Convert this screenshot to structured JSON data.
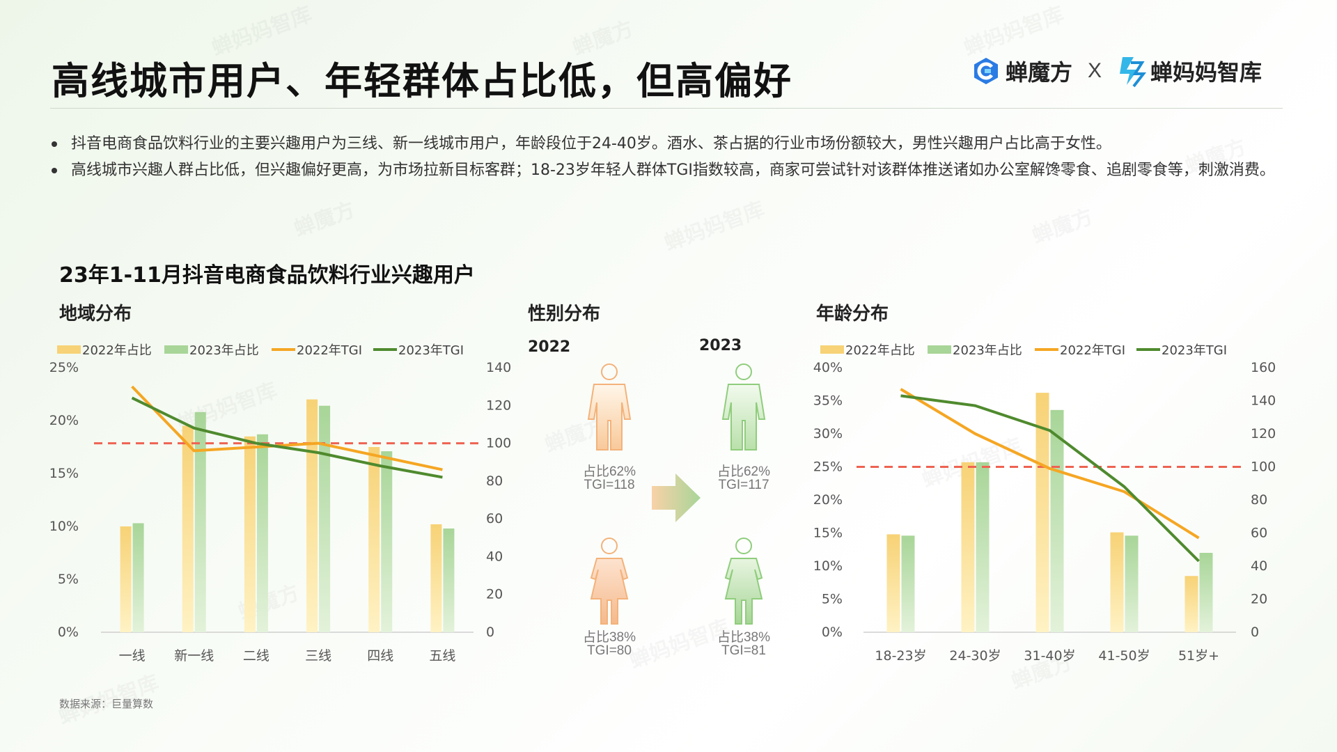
{
  "header": {
    "title": "高线城市用户、年轻群体占比低，但高偏好",
    "logo1": "蝉魔方",
    "separator": "X",
    "logo2": "蝉妈妈智库"
  },
  "bullets": [
    "抖音电商食品饮料行业的主要兴趣用户为三线、新一线城市用户，年龄段位于24-40岁。酒水、茶占据的行业市场份额较大，男性兴趣用户占比高于女性。",
    "高线城市兴趣人群占比低，但兴趣偏好更高，为市场拉新目标客群；18-23岁年轻人群体TGI指数较高，商家可尝试针对该群体推送诸如办公室解馋零食、追剧零食等，刺激消费。"
  ],
  "section_title": "23年1-11月抖音电商食品饮料行业兴趣用户",
  "source": "数据来源：巨量算数",
  "watermark": [
    "蝉妈妈智库",
    "蝉魔方"
  ],
  "colors": {
    "bar2022": "#f7d276",
    "bar2023": "#a8d598",
    "tgi2022": "#f5a623",
    "tgi2023": "#4f8a2e",
    "baseline": "#ee6352"
  },
  "gender": {
    "title": "性别分布",
    "year_a": "2022",
    "year_b": "2023",
    "male_2022": {
      "share": "占比62%",
      "tgi": "TGI=118"
    },
    "female_2022": {
      "share": "占比38%",
      "tgi": "TGI=80"
    },
    "male_2023": {
      "share": "占比62%",
      "tgi": "TGI=117"
    },
    "female_2023": {
      "share": "占比38%",
      "tgi": "TGI=81"
    }
  },
  "chart_data": [
    {
      "type": "bar",
      "title": "地域分布",
      "categories": [
        "一线",
        "新一线",
        "二线",
        "三线",
        "四线",
        "五线"
      ],
      "series": [
        {
          "name": "2022年占比",
          "type": "bar",
          "axis": "left",
          "values": [
            10.0,
            19.5,
            18.5,
            22.0,
            17.5,
            10.2
          ]
        },
        {
          "name": "2023年占比",
          "type": "bar",
          "axis": "left",
          "values": [
            10.3,
            20.8,
            18.7,
            21.4,
            17.1,
            9.8
          ]
        },
        {
          "name": "2022年TGI",
          "type": "line",
          "axis": "right",
          "values": [
            130,
            96,
            98,
            100,
            93,
            86
          ]
        },
        {
          "name": "2023年TGI",
          "type": "line",
          "axis": "right",
          "values": [
            124,
            108,
            100,
            95,
            88,
            82
          ]
        }
      ],
      "baseline_tgi": 100,
      "left_ticks": [
        "25%",
        "20%",
        "15%",
        "10%",
        "5%",
        "0%"
      ],
      "right_ticks": [
        "140",
        "120",
        "100",
        "80",
        "60",
        "40",
        "20",
        "0"
      ],
      "ylim_left": [
        0,
        25
      ],
      "ylim_right": [
        0,
        140
      ],
      "legend": "top"
    },
    {
      "type": "bar",
      "title": "年龄分布",
      "categories": [
        "18-23岁",
        "24-30岁",
        "31-40岁",
        "41-50岁",
        "51岁+"
      ],
      "series": [
        {
          "name": "2022年占比",
          "type": "bar",
          "axis": "left",
          "values": [
            14.8,
            25.7,
            36.2,
            15.1,
            8.5
          ]
        },
        {
          "name": "2023年占比",
          "type": "bar",
          "axis": "left",
          "values": [
            14.6,
            25.7,
            33.6,
            14.6,
            12.0
          ]
        },
        {
          "name": "2022年TGI",
          "type": "line",
          "axis": "right",
          "values": [
            147,
            120,
            99,
            85,
            57
          ]
        },
        {
          "name": "2023年TGI",
          "type": "line",
          "axis": "right",
          "values": [
            143,
            137,
            122,
            88,
            43
          ]
        }
      ],
      "baseline_tgi": 100,
      "left_ticks": [
        "40%",
        "35%",
        "30%",
        "25%",
        "20%",
        "15%",
        "10%",
        "5%",
        "0%"
      ],
      "right_ticks": [
        "160",
        "140",
        "120",
        "100",
        "80",
        "60",
        "40",
        "20",
        "0"
      ],
      "ylim_left": [
        0,
        40
      ],
      "ylim_right": [
        0,
        160
      ],
      "legend": "top"
    }
  ]
}
